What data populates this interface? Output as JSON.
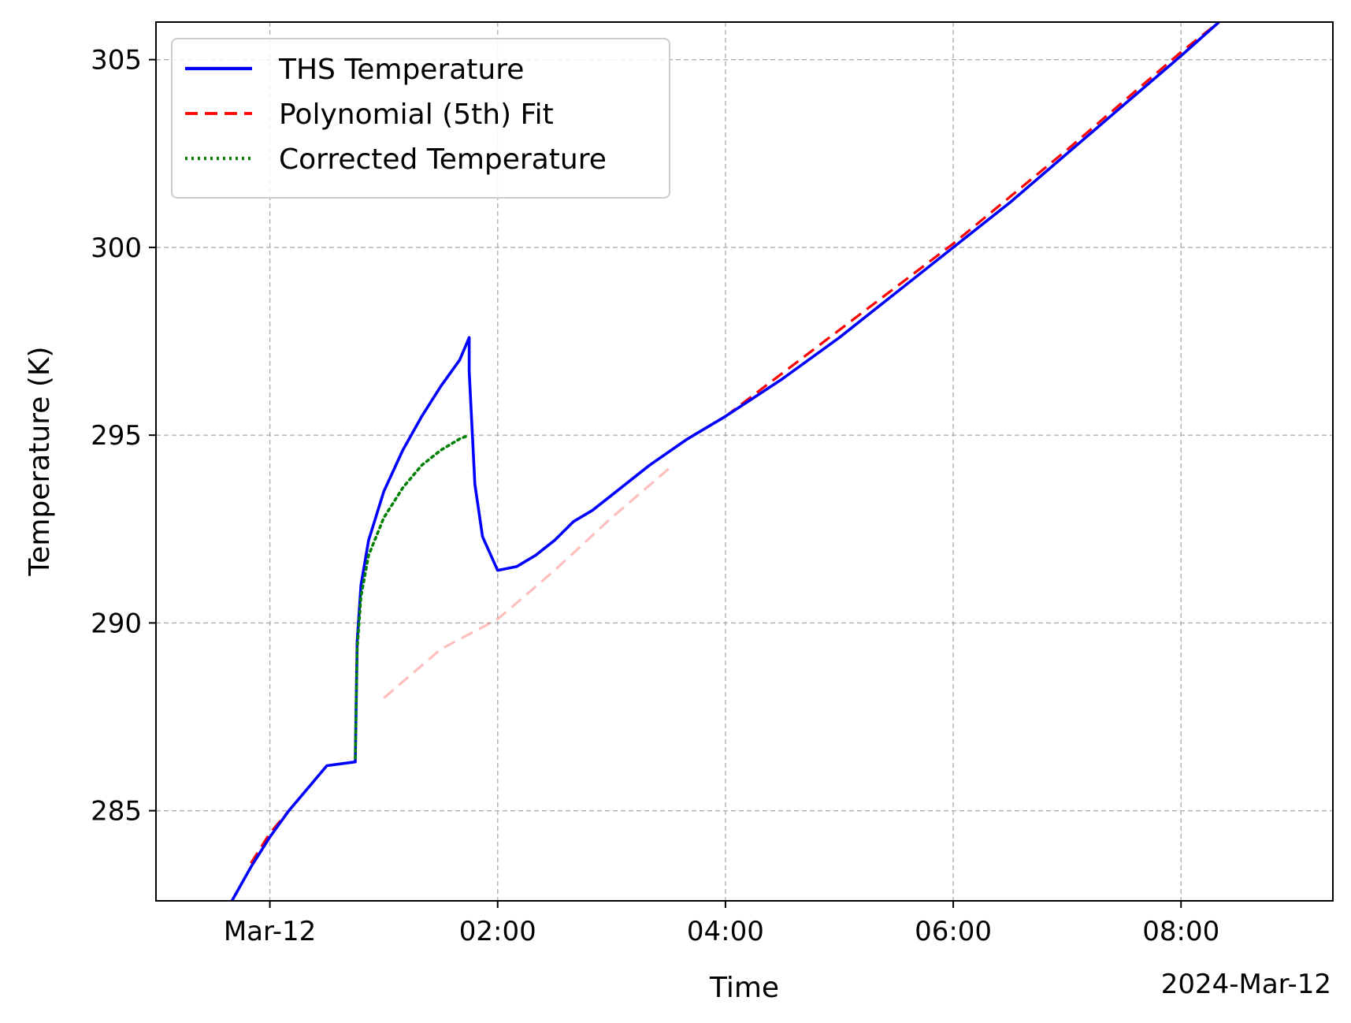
{
  "chart_data": {
    "type": "line",
    "xlabel": "Time",
    "ylabel": "Temperature (K)",
    "x_offset_label": "2024-Mar-12",
    "xlim": [
      "2024-03-11T23:00",
      "2024-03-12T09:20"
    ],
    "ylim": [
      282.6,
      306.0
    ],
    "x_ticks": [
      {
        "x": "2024-03-12T00:00",
        "label": "Mar-12"
      },
      {
        "x": "2024-03-12T02:00",
        "label": "02:00"
      },
      {
        "x": "2024-03-12T04:00",
        "label": "04:00"
      },
      {
        "x": "2024-03-12T06:00",
        "label": "06:00"
      },
      {
        "x": "2024-03-12T08:00",
        "label": "08:00"
      }
    ],
    "y_ticks": [
      {
        "y": 285,
        "label": "285"
      },
      {
        "y": 290,
        "label": "290"
      },
      {
        "y": 295,
        "label": "295"
      },
      {
        "y": 300,
        "label": "300"
      },
      {
        "y": 305,
        "label": "305"
      }
    ],
    "grid": true,
    "legend_position": "top-left",
    "series": [
      {
        "name": "THS Temperature",
        "color": "#0000ff",
        "style": "solid",
        "points": [
          [
            "2024-03-11T23:40",
            282.6
          ],
          [
            "2024-03-11T23:50",
            283.5
          ],
          [
            "2024-03-12T00:00",
            284.3
          ],
          [
            "2024-03-12T00:10",
            285.0
          ],
          [
            "2024-03-12T00:20",
            285.6
          ],
          [
            "2024-03-12T00:30",
            286.2
          ],
          [
            "2024-03-12T00:45",
            286.3
          ],
          [
            "2024-03-12T00:46",
            289.5
          ],
          [
            "2024-03-12T00:48",
            291.0
          ],
          [
            "2024-03-12T00:52",
            292.2
          ],
          [
            "2024-03-12T01:00",
            293.5
          ],
          [
            "2024-03-12T01:10",
            294.6
          ],
          [
            "2024-03-12T01:20",
            295.5
          ],
          [
            "2024-03-12T01:30",
            296.3
          ],
          [
            "2024-03-12T01:40",
            297.0
          ],
          [
            "2024-03-12T01:45",
            297.6
          ],
          [
            "2024-03-12T01:45",
            296.7
          ],
          [
            "2024-03-12T01:48",
            293.7
          ],
          [
            "2024-03-12T01:52",
            292.3
          ],
          [
            "2024-03-12T02:00",
            291.4
          ],
          [
            "2024-03-12T02:10",
            291.5
          ],
          [
            "2024-03-12T02:20",
            291.8
          ],
          [
            "2024-03-12T02:30",
            292.2
          ],
          [
            "2024-03-12T02:40",
            292.7
          ],
          [
            "2024-03-12T02:50",
            293.0
          ],
          [
            "2024-03-12T03:00",
            293.4
          ],
          [
            "2024-03-12T03:20",
            294.2
          ],
          [
            "2024-03-12T03:40",
            294.9
          ],
          [
            "2024-03-12T04:00",
            295.5
          ],
          [
            "2024-03-12T04:30",
            296.5
          ],
          [
            "2024-03-12T05:00",
            297.6
          ],
          [
            "2024-03-12T05:30",
            298.8
          ],
          [
            "2024-03-12T06:00",
            300.0
          ],
          [
            "2024-03-12T06:30",
            301.2
          ],
          [
            "2024-03-12T07:00",
            302.5
          ],
          [
            "2024-03-12T07:30",
            303.8
          ],
          [
            "2024-03-12T08:00",
            305.1
          ],
          [
            "2024-03-12T08:20",
            306.0
          ]
        ]
      },
      {
        "name": "Polynomial (5th) Fit",
        "color": "#ff0000",
        "style": "dashed",
        "points": [
          [
            "2024-03-11T23:50",
            283.6
          ],
          [
            "2024-03-12T00:00",
            284.4
          ],
          [
            "2024-03-12T00:30",
            286.2
          ],
          [
            "2024-03-12T01:00",
            288.0
          ],
          [
            "2024-03-12T01:30",
            289.3
          ],
          [
            "2024-03-12T02:00",
            290.1
          ],
          [
            "2024-03-12T02:30",
            291.4
          ],
          [
            "2024-03-12T03:00",
            292.8
          ],
          [
            "2024-03-12T03:30",
            294.1
          ],
          [
            "2024-03-12T04:00",
            295.5
          ],
          [
            "2024-03-12T05:00",
            297.8
          ],
          [
            "2024-03-12T06:00",
            300.1
          ],
          [
            "2024-03-12T07:00",
            302.6
          ],
          [
            "2024-03-12T08:00",
            305.2
          ],
          [
            "2024-03-12T08:20",
            306.0
          ]
        ],
        "faded_segment": [
          "2024-03-12T00:45",
          "2024-03-12T03:50"
        ]
      },
      {
        "name": "Corrected Temperature",
        "color": "#008000",
        "style": "dotted",
        "points": [
          [
            "2024-03-12T00:45",
            286.4
          ],
          [
            "2024-03-12T00:46",
            289.3
          ],
          [
            "2024-03-12T00:48",
            290.7
          ],
          [
            "2024-03-12T00:52",
            291.8
          ],
          [
            "2024-03-12T01:00",
            292.8
          ],
          [
            "2024-03-12T01:10",
            293.6
          ],
          [
            "2024-03-12T01:20",
            294.2
          ],
          [
            "2024-03-12T01:30",
            294.6
          ],
          [
            "2024-03-12T01:40",
            294.9
          ],
          [
            "2024-03-12T01:45",
            295.0
          ]
        ]
      }
    ]
  }
}
